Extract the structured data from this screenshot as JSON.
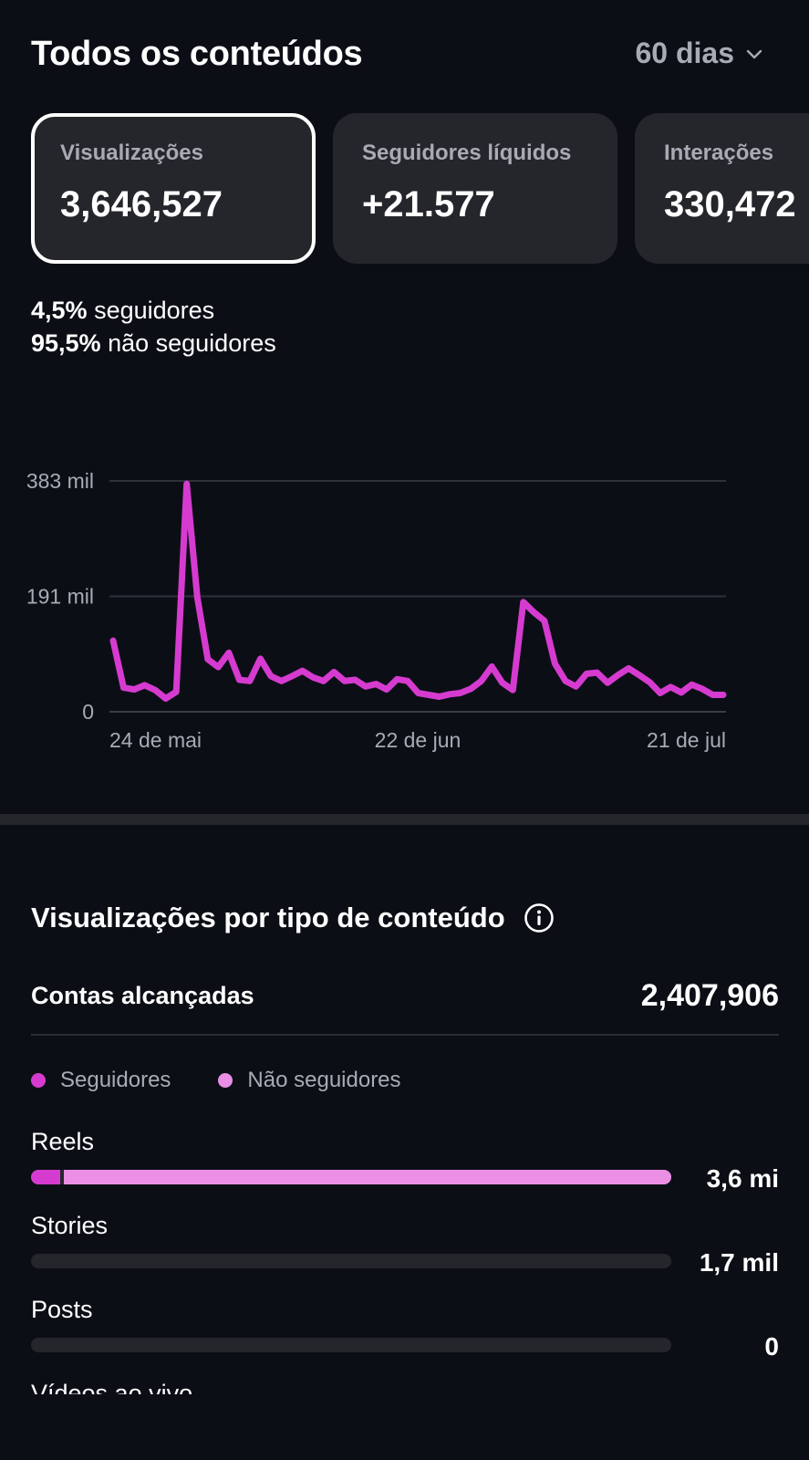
{
  "header": {
    "title": "Todos os conteúdos",
    "period": "60 dias"
  },
  "cards": [
    {
      "label": "Visualizações",
      "value": "3,646,527",
      "selected": true
    },
    {
      "label": "Seguidores líquidos",
      "value": "+21.577",
      "selected": false
    },
    {
      "label": "Interações",
      "value": "330,472",
      "selected": false
    }
  ],
  "split": {
    "followers_pct": "4,5%",
    "followers_label": "seguidores",
    "nonfollowers_pct": "95,5%",
    "nonfollowers_label": "não seguidores"
  },
  "chart_data": {
    "type": "line",
    "x_ticks": [
      "24 de mai",
      "22 de jun",
      "21 de jul"
    ],
    "y_ticks": [
      "383 mil",
      "191 mil",
      "0"
    ],
    "ylim": [
      0,
      383000
    ],
    "grid": true,
    "series": [
      {
        "color": "#d63bd0",
        "values": [
          118000,
          40000,
          37000,
          44000,
          36000,
          22000,
          33000,
          378000,
          190000,
          87000,
          74000,
          98000,
          53000,
          51000,
          88000,
          59000,
          51000,
          59000,
          68000,
          57000,
          51000,
          66000,
          51000,
          53000,
          42000,
          46000,
          37000,
          54000,
          51000,
          31000,
          28000,
          25000,
          29000,
          31000,
          38000,
          51000,
          75000,
          48000,
          36000,
          182000,
          165000,
          151000,
          80000,
          51000,
          42000,
          63000,
          65000,
          48000,
          61000,
          72000,
          61000,
          49000,
          31000,
          41000,
          32000,
          45000,
          38000,
          28000,
          28000
        ]
      }
    ]
  },
  "section": {
    "title": "Visualizações por tipo de conteúdo",
    "reach_label": "Contas alcançadas",
    "reach_value": "2,407,906"
  },
  "legend": [
    {
      "label": "Seguidores",
      "color": "#d63bd0"
    },
    {
      "label": "Não seguidores",
      "color": "#eb8fe5"
    }
  ],
  "content_types": [
    {
      "name": "Reels",
      "value": "3,6 mi",
      "followers_fraction": 0.045,
      "nonfollowers_fraction": 0.955
    },
    {
      "name": "Stories",
      "value": "1,7 mil",
      "followers_fraction": 0,
      "nonfollowers_fraction": 0
    },
    {
      "name": "Posts",
      "value": "0",
      "followers_fraction": 0,
      "nonfollowers_fraction": 0
    },
    {
      "name": "Vídeos ao vivo"
    }
  ]
}
